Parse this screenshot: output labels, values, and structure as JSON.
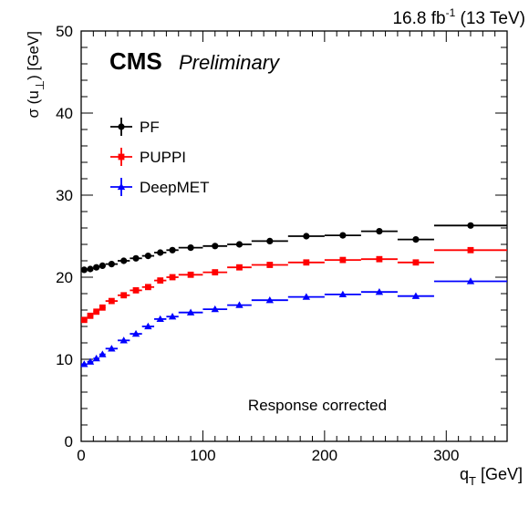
{
  "chart_data": {
    "type": "scatter",
    "lumi_label": "16.8 fb",
    "lumi_sup": "-1",
    "lumi_energy": " (13 TeV)",
    "experiment": "CMS",
    "status": "Preliminary",
    "annotation": "Response corrected",
    "xlabel_main": "q",
    "xlabel_sub": "T",
    "xlabel_unit": " [GeV]",
    "ylabel_main": "σ (u",
    "ylabel_sub": "⊥",
    "ylabel_unit": ") [GeV]",
    "xlim": [
      0,
      350
    ],
    "ylim": [
      0,
      50
    ],
    "x_ticks": [
      0,
      100,
      200,
      300
    ],
    "y_ticks": [
      0,
      10,
      20,
      30,
      40,
      50
    ],
    "legend_position": "top-left",
    "series": [
      {
        "name": "PF",
        "color": "#000000",
        "marker": "circle",
        "points": [
          {
            "x": 2.5,
            "xlo": 0,
            "xhi": 5,
            "y": 20.9
          },
          {
            "x": 7.5,
            "xlo": 5,
            "xhi": 10,
            "y": 21.0
          },
          {
            "x": 12.5,
            "xlo": 10,
            "xhi": 15,
            "y": 21.2
          },
          {
            "x": 17.5,
            "xlo": 15,
            "xhi": 20,
            "y": 21.4
          },
          {
            "x": 25,
            "xlo": 20,
            "xhi": 30,
            "y": 21.6
          },
          {
            "x": 35,
            "xlo": 30,
            "xhi": 40,
            "y": 22.0
          },
          {
            "x": 45,
            "xlo": 40,
            "xhi": 50,
            "y": 22.3
          },
          {
            "x": 55,
            "xlo": 50,
            "xhi": 60,
            "y": 22.6
          },
          {
            "x": 65,
            "xlo": 60,
            "xhi": 70,
            "y": 23.0
          },
          {
            "x": 75,
            "xlo": 70,
            "xhi": 80,
            "y": 23.3
          },
          {
            "x": 90,
            "xlo": 80,
            "xhi": 100,
            "y": 23.6
          },
          {
            "x": 110,
            "xlo": 100,
            "xhi": 120,
            "y": 23.8
          },
          {
            "x": 130,
            "xlo": 120,
            "xhi": 140,
            "y": 24.0
          },
          {
            "x": 155,
            "xlo": 140,
            "xhi": 170,
            "y": 24.4
          },
          {
            "x": 185,
            "xlo": 170,
            "xhi": 200,
            "y": 25.0
          },
          {
            "x": 215,
            "xlo": 200,
            "xhi": 230,
            "y": 25.1
          },
          {
            "x": 245,
            "xlo": 230,
            "xhi": 260,
            "y": 25.6
          },
          {
            "x": 275,
            "xlo": 260,
            "xhi": 290,
            "y": 24.6
          },
          {
            "x": 320,
            "xlo": 290,
            "xhi": 350,
            "y": 26.3
          }
        ]
      },
      {
        "name": "PUPPI",
        "color": "#ff0000",
        "marker": "square",
        "points": [
          {
            "x": 2.5,
            "xlo": 0,
            "xhi": 5,
            "y": 14.8
          },
          {
            "x": 7.5,
            "xlo": 5,
            "xhi": 10,
            "y": 15.3
          },
          {
            "x": 12.5,
            "xlo": 10,
            "xhi": 15,
            "y": 15.8
          },
          {
            "x": 17.5,
            "xlo": 15,
            "xhi": 20,
            "y": 16.3
          },
          {
            "x": 25,
            "xlo": 20,
            "xhi": 30,
            "y": 17.1
          },
          {
            "x": 35,
            "xlo": 30,
            "xhi": 40,
            "y": 17.8
          },
          {
            "x": 45,
            "xlo": 40,
            "xhi": 50,
            "y": 18.4
          },
          {
            "x": 55,
            "xlo": 50,
            "xhi": 60,
            "y": 18.8
          },
          {
            "x": 65,
            "xlo": 60,
            "xhi": 70,
            "y": 19.6
          },
          {
            "x": 75,
            "xlo": 70,
            "xhi": 80,
            "y": 20.0
          },
          {
            "x": 90,
            "xlo": 80,
            "xhi": 100,
            "y": 20.3
          },
          {
            "x": 110,
            "xlo": 100,
            "xhi": 120,
            "y": 20.6
          },
          {
            "x": 130,
            "xlo": 120,
            "xhi": 140,
            "y": 21.2
          },
          {
            "x": 155,
            "xlo": 140,
            "xhi": 170,
            "y": 21.5
          },
          {
            "x": 185,
            "xlo": 170,
            "xhi": 200,
            "y": 21.8
          },
          {
            "x": 215,
            "xlo": 200,
            "xhi": 230,
            "y": 22.1
          },
          {
            "x": 245,
            "xlo": 230,
            "xhi": 260,
            "y": 22.2
          },
          {
            "x": 275,
            "xlo": 260,
            "xhi": 290,
            "y": 21.8
          },
          {
            "x": 320,
            "xlo": 290,
            "xhi": 350,
            "y": 23.3
          }
        ]
      },
      {
        "name": "DeepMET",
        "color": "#0000ff",
        "marker": "triangle",
        "points": [
          {
            "x": 2.5,
            "xlo": 0,
            "xhi": 5,
            "y": 9.4
          },
          {
            "x": 7.5,
            "xlo": 5,
            "xhi": 10,
            "y": 9.7
          },
          {
            "x": 12.5,
            "xlo": 10,
            "xhi": 15,
            "y": 10.1
          },
          {
            "x": 17.5,
            "xlo": 15,
            "xhi": 20,
            "y": 10.6
          },
          {
            "x": 25,
            "xlo": 20,
            "xhi": 30,
            "y": 11.3
          },
          {
            "x": 35,
            "xlo": 30,
            "xhi": 40,
            "y": 12.3
          },
          {
            "x": 45,
            "xlo": 40,
            "xhi": 50,
            "y": 13.1
          },
          {
            "x": 55,
            "xlo": 50,
            "xhi": 60,
            "y": 14.0
          },
          {
            "x": 65,
            "xlo": 60,
            "xhi": 70,
            "y": 14.9
          },
          {
            "x": 75,
            "xlo": 70,
            "xhi": 80,
            "y": 15.2
          },
          {
            "x": 90,
            "xlo": 80,
            "xhi": 100,
            "y": 15.7
          },
          {
            "x": 110,
            "xlo": 100,
            "xhi": 120,
            "y": 16.1
          },
          {
            "x": 130,
            "xlo": 120,
            "xhi": 140,
            "y": 16.6
          },
          {
            "x": 155,
            "xlo": 140,
            "xhi": 170,
            "y": 17.2
          },
          {
            "x": 185,
            "xlo": 170,
            "xhi": 200,
            "y": 17.6
          },
          {
            "x": 215,
            "xlo": 200,
            "xhi": 230,
            "y": 17.9
          },
          {
            "x": 245,
            "xlo": 230,
            "xhi": 260,
            "y": 18.2
          },
          {
            "x": 275,
            "xlo": 260,
            "xhi": 290,
            "y": 17.7
          },
          {
            "x": 320,
            "xlo": 290,
            "xhi": 350,
            "y": 19.5
          }
        ]
      }
    ]
  }
}
